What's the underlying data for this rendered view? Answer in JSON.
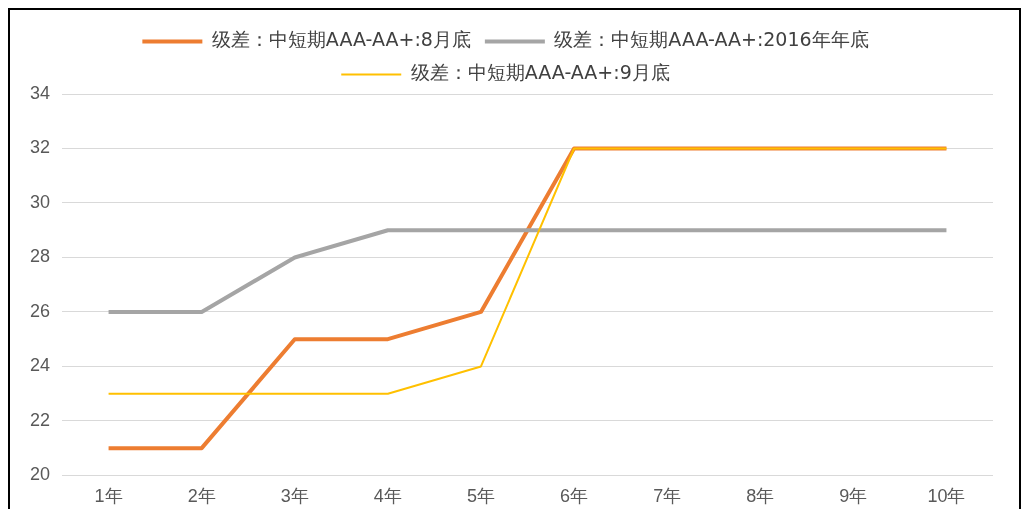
{
  "chart_data": {
    "type": "line",
    "categories": [
      "1年",
      "2年",
      "3年",
      "4年",
      "5年",
      "6年",
      "7年",
      "8年",
      "9年",
      "10年"
    ],
    "series": [
      {
        "name": "级差：中短期AAA-AA+:8月底",
        "color": "#ed7d31",
        "values": [
          21,
          21,
          25,
          25,
          26,
          32,
          32,
          32,
          32,
          32
        ]
      },
      {
        "name": "级差：中短期AAA-AA+:2016年年底",
        "color": "#a5a5a5",
        "values": [
          26,
          26,
          28,
          29,
          29,
          29,
          29,
          29,
          29,
          29
        ]
      },
      {
        "name": "级差：中短期AAA-AA+:9月底",
        "color": "#ffc000",
        "values": [
          23,
          23,
          23,
          23,
          24,
          32,
          32,
          32,
          32,
          32
        ]
      }
    ],
    "ylim": [
      20,
      34
    ],
    "yticks": [
      20,
      22,
      24,
      26,
      28,
      30,
      32,
      34
    ],
    "grid": "y",
    "legend": "top",
    "marker": "none",
    "line_style": "solid"
  }
}
